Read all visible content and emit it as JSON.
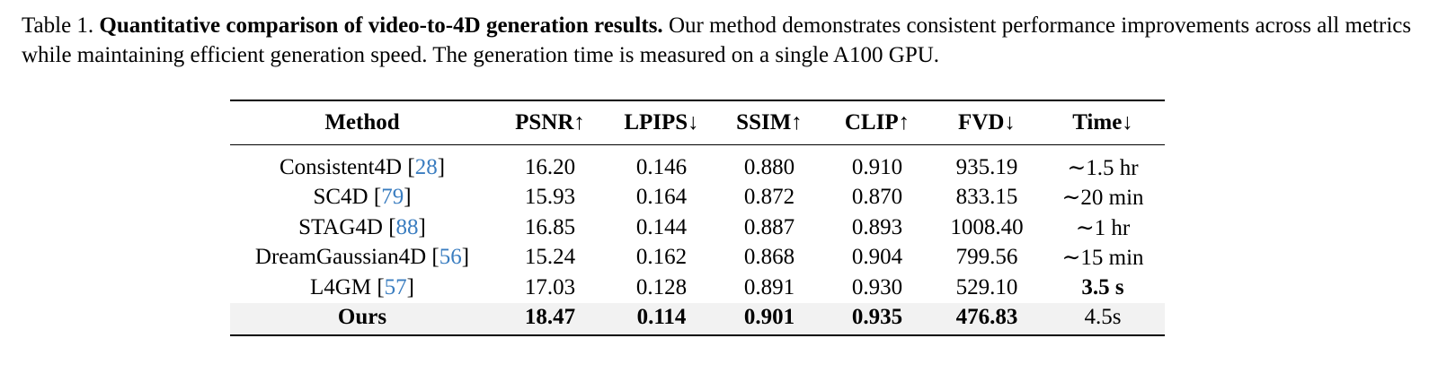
{
  "caption": {
    "label": "Table 1.",
    "title": "Quantitative comparison of video-to-4D generation results.",
    "body": "Our method demonstrates consistent performance improvements across all metrics while maintaining efficient generation speed. The generation time is measured on a single A100 GPU."
  },
  "table": {
    "headers": [
      "Method",
      "PSNR↑",
      "LPIPS↓",
      "SSIM↑",
      "CLIP↑",
      "FVD↓",
      "Time↓"
    ],
    "rows": [
      {
        "method": "Consistent4D",
        "ref": "28",
        "psnr": "16.20",
        "lpips": "0.146",
        "ssim": "0.880",
        "clip": "0.910",
        "fvd": "935.19",
        "time": "∼1.5 hr"
      },
      {
        "method": "SC4D",
        "ref": "79",
        "psnr": "15.93",
        "lpips": "0.164",
        "ssim": "0.872",
        "clip": "0.870",
        "fvd": "833.15",
        "time": "∼20 min"
      },
      {
        "method": "STAG4D",
        "ref": "88",
        "psnr": "16.85",
        "lpips": "0.144",
        "ssim": "0.887",
        "clip": "0.893",
        "fvd": "1008.40",
        "time": "∼1 hr"
      },
      {
        "method": "DreamGaussian4D",
        "ref": "56",
        "psnr": "15.24",
        "lpips": "0.162",
        "ssim": "0.868",
        "clip": "0.904",
        "fvd": "799.56",
        "time": "∼15 min"
      },
      {
        "method": "L4GM",
        "ref": "57",
        "psnr": "17.03",
        "lpips": "0.128",
        "ssim": "0.891",
        "clip": "0.930",
        "fvd": "529.10",
        "time": "3.5 s"
      },
      {
        "method": "Ours",
        "ref": "",
        "psnr": "18.47",
        "lpips": "0.114",
        "ssim": "0.901",
        "clip": "0.935",
        "fvd": "476.83",
        "time": "4.5s"
      }
    ]
  }
}
